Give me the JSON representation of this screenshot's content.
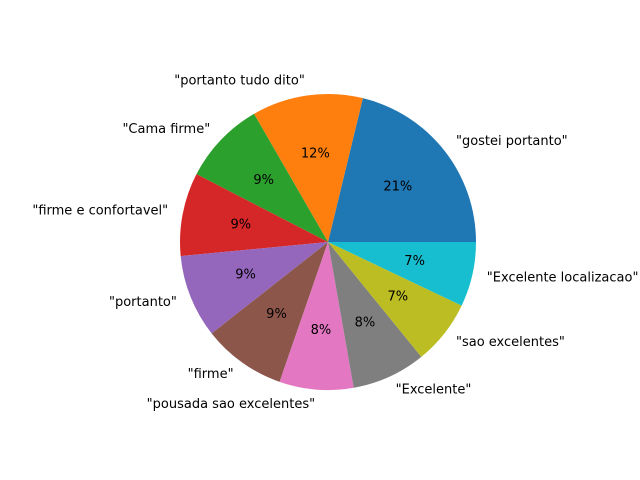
{
  "chart_data": {
    "type": "pie",
    "title": "",
    "start_angle": 0,
    "direction": "counterclockwise",
    "slices": [
      {
        "label": "\"gostei portanto\"",
        "value": 21,
        "pct_label": "21%",
        "color": "#1f77b4"
      },
      {
        "label": "\"portanto tudo dito\"",
        "value": 12,
        "pct_label": "12%",
        "color": "#ff7f0e"
      },
      {
        "label": "\"Cama firme\"",
        "value": 9,
        "pct_label": "9%",
        "color": "#2ca02c"
      },
      {
        "label": "\"firme e confortavel\"",
        "value": 9,
        "pct_label": "9%",
        "color": "#d62728"
      },
      {
        "label": "\"portanto\"",
        "value": 9,
        "pct_label": "9%",
        "color": "#9467bd"
      },
      {
        "label": "\"firme\"",
        "value": 9,
        "pct_label": "9%",
        "color": "#8c564b"
      },
      {
        "label": "\"pousada sao excelentes\"",
        "value": 8,
        "pct_label": "8%",
        "color": "#e377c2"
      },
      {
        "label": "\"Excelente\"",
        "value": 8,
        "pct_label": "8%",
        "color": "#7f7f7f"
      },
      {
        "label": "\"sao excelentes\"",
        "value": 7,
        "pct_label": "7%",
        "color": "#bcbd22"
      },
      {
        "label": "\"Excelente localizacao\"",
        "value": 7,
        "pct_label": "7%",
        "color": "#17becf"
      }
    ]
  }
}
